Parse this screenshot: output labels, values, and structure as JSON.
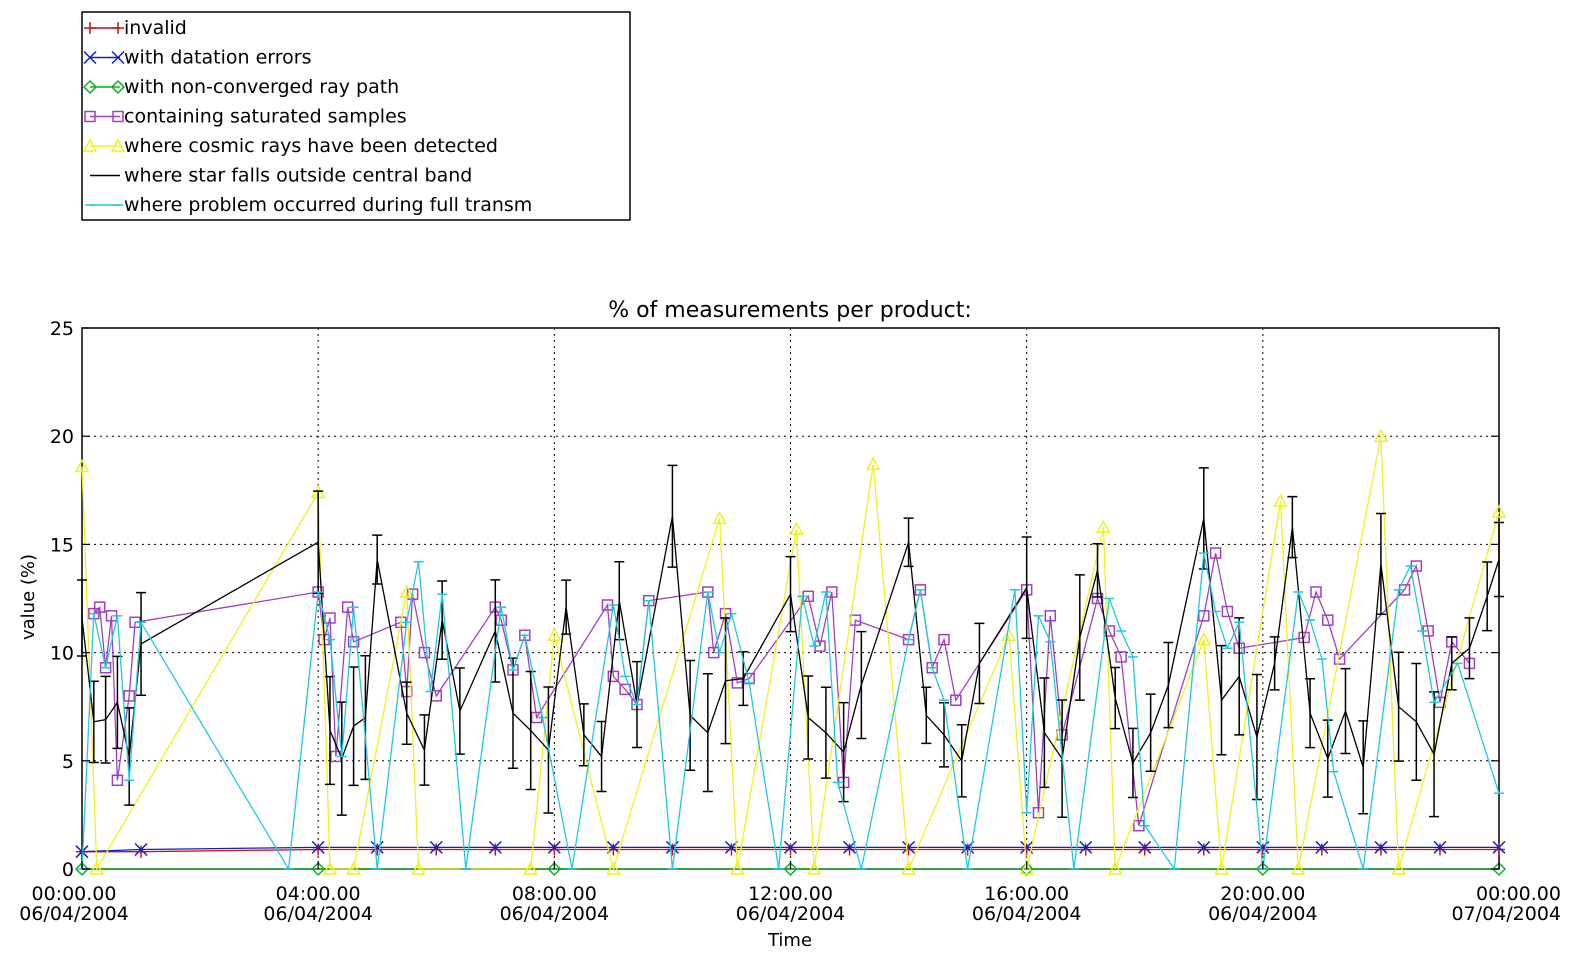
{
  "chart_data": {
    "type": "line",
    "title": "% of measurements per product:",
    "xlabel": "Time",
    "ylabel": "value (%)",
    "ylim": [
      0,
      25
    ],
    "yticks": [
      0,
      5,
      10,
      15,
      20,
      25
    ],
    "xlim": [
      "2004-04-06T00:00",
      "2004-04-07T00:00"
    ],
    "xticks": [
      {
        "time": "00:00.00",
        "date": "06/04/2004"
      },
      {
        "time": "04:00.00",
        "date": "06/04/2004"
      },
      {
        "time": "08:00.00",
        "date": "06/04/2004"
      },
      {
        "time": "12:00.00",
        "date": "06/04/2004"
      },
      {
        "time": "16:00.00",
        "date": "06/04/2004"
      },
      {
        "time": "20:00.00",
        "date": "06/04/2004"
      },
      {
        "time": "00:00.00",
        "date": "07/04/2004"
      }
    ],
    "grid": "dotted",
    "legend_position": "top-left",
    "series": [
      {
        "name": "invalid",
        "color": "#d01010",
        "marker": "plus",
        "x": [
          0.0,
          1.0,
          4.0,
          5.0,
          6.0,
          7.0,
          8.0,
          9.0,
          10.0,
          11.0,
          12.0,
          13.0,
          14.0,
          15.0,
          16.0,
          17.0,
          18.0,
          19.0,
          20.0,
          21.0,
          22.0,
          23.0,
          24.0
        ],
        "y": [
          0.8,
          0.8,
          0.9,
          0.9,
          0.9,
          0.9,
          0.9,
          0.9,
          0.9,
          0.9,
          0.9,
          0.9,
          0.9,
          0.9,
          0.9,
          0.9,
          0.9,
          0.9,
          0.9,
          0.9,
          0.9,
          0.9,
          0.9
        ]
      },
      {
        "name": "with datation errors",
        "color": "#1020c0",
        "marker": "x",
        "x": [
          0.0,
          1.0,
          4.0,
          5.0,
          6.0,
          7.0,
          8.0,
          9.0,
          10.0,
          11.0,
          12.0,
          13.0,
          14.0,
          15.0,
          16.0,
          17.0,
          18.0,
          19.0,
          20.0,
          21.0,
          22.0,
          23.0,
          24.0
        ],
        "y": [
          0.8,
          0.9,
          1.0,
          1.0,
          1.0,
          1.0,
          1.0,
          1.0,
          1.0,
          1.0,
          1.0,
          1.0,
          1.0,
          1.0,
          1.0,
          1.0,
          1.0,
          1.0,
          1.0,
          1.0,
          1.0,
          1.0,
          1.0
        ]
      },
      {
        "name": "with non-converged ray path",
        "color": "#10b020",
        "marker": "diamond",
        "x": [
          0.0,
          4.0,
          8.0,
          12.0,
          16.0,
          20.0,
          24.0
        ],
        "y": [
          0,
          0,
          0,
          0,
          0,
          0,
          0
        ]
      },
      {
        "name": "containing saturated samples",
        "color": "#a040c0",
        "marker": "square",
        "x": [
          0.2,
          0.3,
          0.4,
          0.5,
          0.6,
          0.8,
          0.9,
          4.0,
          4.1,
          4.2,
          4.3,
          4.5,
          4.6,
          5.4,
          5.5,
          5.6,
          5.8,
          6.0,
          7.0,
          7.1,
          7.3,
          7.5,
          7.7,
          8.9,
          9.0,
          9.2,
          9.4,
          9.6,
          10.6,
          10.7,
          10.9,
          11.1,
          11.3,
          12.3,
          12.5,
          12.7,
          12.9,
          13.1,
          14.0,
          14.2,
          14.4,
          14.6,
          14.8,
          16.0,
          16.2,
          16.4,
          16.6,
          17.2,
          17.4,
          17.6,
          17.9,
          19.0,
          19.2,
          19.4,
          19.6,
          20.7,
          20.9,
          21.1,
          21.3,
          22.4,
          22.6,
          22.8,
          23.0,
          23.2,
          23.5
        ],
        "y": [
          11.8,
          12.1,
          9.3,
          11.7,
          4.1,
          8.0,
          11.4,
          12.8,
          10.6,
          11.6,
          5.2,
          12.1,
          10.5,
          11.4,
          8.2,
          12.7,
          10.0,
          8.0,
          12.1,
          11.5,
          9.2,
          10.8,
          7.0,
          12.2,
          8.9,
          8.3,
          7.6,
          12.4,
          12.8,
          10.0,
          11.8,
          8.6,
          8.8,
          12.6,
          10.3,
          12.8,
          4.0,
          11.5,
          10.6,
          12.9,
          9.3,
          10.6,
          7.8,
          12.9,
          2.6,
          11.7,
          6.2,
          12.5,
          11.0,
          9.8,
          2.0,
          11.7,
          14.6,
          11.9,
          10.2,
          10.7,
          12.8,
          11.5,
          9.7,
          12.9,
          14.0,
          11.0,
          7.7,
          10.5,
          9.5
        ]
      },
      {
        "name": "where cosmic rays have been detected",
        "color": "#f0f020",
        "marker": "triangle",
        "x": [
          0.0,
          0.25,
          4.0,
          4.2,
          4.6,
          5.5,
          5.7,
          7.6,
          8.0,
          9.0,
          10.8,
          11.1,
          12.1,
          12.4,
          13.4,
          14.0,
          15.7,
          16.0,
          17.3,
          17.5,
          19.0,
          19.3,
          20.3,
          20.6,
          22.0,
          22.3,
          24.0
        ],
        "y": [
          18.6,
          0.0,
          17.4,
          0.0,
          0.0,
          12.8,
          0.0,
          0.0,
          10.8,
          0.0,
          16.2,
          0.0,
          15.7,
          0.0,
          18.7,
          0.0,
          10.8,
          0.0,
          15.8,
          0.0,
          10.6,
          0.0,
          17.0,
          0.0,
          20.0,
          0.0,
          16.5
        ]
      },
      {
        "name": "where star falls outside central band",
        "color": "#000000",
        "marker": "errbar",
        "x": [
          0.0,
          0.2,
          0.4,
          0.6,
          0.8,
          1.0,
          4.0,
          4.2,
          4.4,
          4.6,
          4.8,
          5.0,
          5.5,
          5.8,
          6.1,
          6.4,
          7.0,
          7.3,
          7.6,
          7.9,
          8.2,
          8.5,
          8.8,
          9.1,
          9.4,
          10.0,
          10.3,
          10.6,
          10.9,
          11.2,
          12.0,
          12.3,
          12.6,
          12.9,
          13.2,
          14.0,
          14.3,
          14.6,
          14.9,
          15.2,
          16.0,
          16.3,
          16.6,
          16.9,
          17.2,
          17.5,
          17.8,
          18.1,
          18.4,
          19.0,
          19.3,
          19.6,
          19.9,
          20.2,
          20.5,
          20.8,
          21.1,
          21.4,
          21.7,
          22.0,
          22.3,
          22.6,
          22.9,
          23.2,
          23.5,
          23.8,
          24.0
        ],
        "y": [
          11.6,
          6.8,
          6.9,
          7.7,
          5.2,
          10.4,
          15.1,
          6.4,
          5.1,
          6.6,
          7.0,
          14.3,
          7.2,
          5.5,
          11.5,
          7.3,
          11.0,
          7.2,
          6.4,
          5.5,
          12.1,
          6.2,
          5.2,
          12.4,
          7.6,
          16.3,
          7.1,
          6.3,
          8.7,
          8.8,
          12.7,
          7.0,
          6.3,
          5.4,
          8.5,
          15.1,
          7.1,
          6.2,
          5.0,
          9.5,
          13.0,
          6.3,
          5.1,
          10.7,
          13.8,
          7.9,
          4.9,
          6.3,
          8.5,
          16.2,
          7.8,
          8.9,
          6.1,
          9.5,
          15.8,
          7.2,
          5.1,
          7.3,
          4.7,
          14.1,
          7.5,
          6.8,
          5.3,
          9.5,
          10.2,
          12.6,
          14.3
        ]
      },
      {
        "name": "where problem occurred during full transm",
        "color": "#20c8e0",
        "marker": "hbar",
        "x": [
          0.0,
          0.2,
          0.4,
          0.6,
          0.8,
          1.0,
          3.5,
          4.0,
          4.2,
          4.4,
          4.6,
          5.0,
          5.5,
          5.7,
          5.9,
          6.1,
          6.5,
          7.1,
          7.3,
          7.5,
          7.8,
          8.3,
          9.0,
          9.2,
          9.4,
          9.6,
          10.0,
          10.6,
          10.8,
          11.0,
          11.3,
          11.8,
          12.2,
          12.4,
          12.6,
          12.8,
          13.2,
          14.0,
          14.2,
          14.4,
          14.6,
          15.0,
          15.8,
          16.0,
          16.2,
          16.4,
          16.8,
          17.4,
          17.6,
          17.8,
          18.0,
          18.5,
          19.0,
          19.2,
          19.4,
          19.6,
          20.0,
          20.6,
          20.8,
          21.0,
          21.2,
          21.7,
          22.3,
          22.5,
          22.7,
          22.9,
          23.3,
          24.0
        ],
        "y": [
          0.0,
          11.8,
          9.3,
          11.7,
          4.1,
          11.4,
          0.0,
          12.8,
          10.6,
          5.2,
          12.1,
          0.0,
          11.4,
          14.2,
          8.2,
          12.7,
          0.0,
          12.1,
          9.2,
          10.8,
          7.0,
          0.0,
          12.2,
          8.9,
          7.6,
          12.4,
          0.0,
          12.8,
          10.0,
          11.8,
          8.6,
          0.0,
          12.6,
          10.3,
          12.8,
          4.0,
          0.0,
          10.6,
          12.9,
          9.3,
          7.8,
          0.0,
          12.9,
          2.6,
          11.7,
          10.5,
          0.0,
          12.5,
          11.0,
          9.8,
          2.0,
          0.0,
          14.6,
          11.9,
          10.2,
          11.4,
          0.0,
          12.8,
          11.5,
          9.7,
          4.5,
          0.0,
          12.9,
          14.0,
          11.0,
          7.7,
          9.5,
          3.5
        ]
      }
    ]
  }
}
